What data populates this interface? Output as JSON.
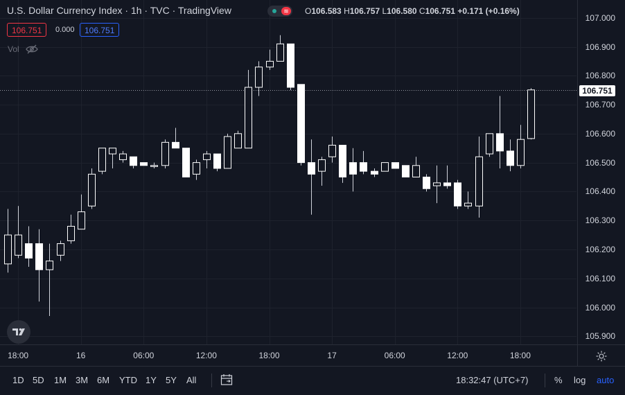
{
  "header": {
    "title": "U.S. Dollar Currency Index · 1h · TVC · TradingView",
    "ohlc": {
      "o_label": "O",
      "o_value": "106.583",
      "h_label": "H",
      "h_value": "106.757",
      "l_label": "L",
      "l_value": "106.580",
      "c_label": "C",
      "c_value": "106.751",
      "change": "+0.171 (+0.16%)"
    },
    "sell_price": "106.751",
    "spread": "0.000",
    "buy_price": "106.751",
    "volume_label": "Vol",
    "market_icon_glyph": "≋"
  },
  "chart_data": {
    "type": "candlestick",
    "title": "U.S. Dollar Currency Index · 1h · TVC · TradingView",
    "x_ticks": [
      {
        "index": 1,
        "label": "18:00"
      },
      {
        "index": 7,
        "label": "16"
      },
      {
        "index": 13,
        "label": "06:00"
      },
      {
        "index": 19,
        "label": "12:00"
      },
      {
        "index": 25,
        "label": "18:00"
      },
      {
        "index": 31,
        "label": "17"
      },
      {
        "index": 37,
        "label": "06:00"
      },
      {
        "index": 43,
        "label": "12:00"
      },
      {
        "index": 49,
        "label": "18:00"
      }
    ],
    "y_ticks": [
      "105.900",
      "106.000",
      "106.100",
      "106.200",
      "106.300",
      "106.400",
      "106.500",
      "106.600",
      "106.700",
      "106.800",
      "106.900",
      "107.000"
    ],
    "ylim": [
      105.87,
      107.02
    ],
    "last_price": "106.751",
    "colors": {
      "up": "#ffffff",
      "down": "#ffffff",
      "wick": "#d1d4dc",
      "background": "#131722",
      "grid": "#1e222d"
    },
    "candles": [
      {
        "o": 106.15,
        "h": 106.34,
        "l": 106.12,
        "c": 106.25
      },
      {
        "o": 106.18,
        "h": 106.35,
        "l": 106.17,
        "c": 106.25
      },
      {
        "o": 106.22,
        "h": 106.28,
        "l": 106.14,
        "c": 106.17
      },
      {
        "o": 106.22,
        "h": 106.27,
        "l": 106.02,
        "c": 106.13
      },
      {
        "o": 106.13,
        "h": 106.22,
        "l": 105.97,
        "c": 106.16
      },
      {
        "o": 106.18,
        "h": 106.23,
        "l": 106.16,
        "c": 106.22
      },
      {
        "o": 106.23,
        "h": 106.32,
        "l": 106.22,
        "c": 106.28
      },
      {
        "o": 106.27,
        "h": 106.39,
        "l": 106.27,
        "c": 106.33
      },
      {
        "o": 106.35,
        "h": 106.48,
        "l": 106.34,
        "c": 106.46
      },
      {
        "o": 106.47,
        "h": 106.55,
        "l": 106.46,
        "c": 106.55
      },
      {
        "o": 106.53,
        "h": 106.55,
        "l": 106.48,
        "c": 106.55
      },
      {
        "o": 106.51,
        "h": 106.54,
        "l": 106.5,
        "c": 106.53
      },
      {
        "o": 106.52,
        "h": 106.52,
        "l": 106.48,
        "c": 106.49
      },
      {
        "o": 106.5,
        "h": 106.5,
        "l": 106.49,
        "c": 106.49
      },
      {
        "o": 106.49,
        "h": 106.5,
        "l": 106.48,
        "c": 106.49
      },
      {
        "o": 106.49,
        "h": 106.58,
        "l": 106.48,
        "c": 106.57
      },
      {
        "o": 106.57,
        "h": 106.62,
        "l": 106.55,
        "c": 106.55
      },
      {
        "o": 106.55,
        "h": 106.55,
        "l": 106.45,
        "c": 106.45
      },
      {
        "o": 106.46,
        "h": 106.51,
        "l": 106.44,
        "c": 106.5
      },
      {
        "o": 106.51,
        "h": 106.54,
        "l": 106.48,
        "c": 106.53
      },
      {
        "o": 106.53,
        "h": 106.53,
        "l": 106.47,
        "c": 106.48
      },
      {
        "o": 106.48,
        "h": 106.6,
        "l": 106.48,
        "c": 106.59
      },
      {
        "o": 106.55,
        "h": 106.61,
        "l": 106.55,
        "c": 106.6
      },
      {
        "o": 106.55,
        "h": 106.82,
        "l": 106.55,
        "c": 106.76
      },
      {
        "o": 106.76,
        "h": 106.85,
        "l": 106.73,
        "c": 106.83
      },
      {
        "o": 106.83,
        "h": 106.89,
        "l": 106.82,
        "c": 106.85
      },
      {
        "o": 106.85,
        "h": 106.94,
        "l": 106.85,
        "c": 106.91
      },
      {
        "o": 106.91,
        "h": 106.91,
        "l": 106.75,
        "c": 106.76
      },
      {
        "o": 106.77,
        "h": 106.77,
        "l": 106.49,
        "c": 106.5
      },
      {
        "o": 106.5,
        "h": 106.58,
        "l": 106.32,
        "c": 106.46
      },
      {
        "o": 106.47,
        "h": 106.52,
        "l": 106.42,
        "c": 106.51
      },
      {
        "o": 106.52,
        "h": 106.59,
        "l": 106.5,
        "c": 106.56
      },
      {
        "o": 106.56,
        "h": 106.56,
        "l": 106.43,
        "c": 106.45
      },
      {
        "o": 106.5,
        "h": 106.55,
        "l": 106.4,
        "c": 106.46
      },
      {
        "o": 106.5,
        "h": 106.54,
        "l": 106.46,
        "c": 106.47
      },
      {
        "o": 106.47,
        "h": 106.48,
        "l": 106.45,
        "c": 106.46
      },
      {
        "o": 106.47,
        "h": 106.5,
        "l": 106.47,
        "c": 106.5
      },
      {
        "o": 106.5,
        "h": 106.5,
        "l": 106.48,
        "c": 106.48
      },
      {
        "o": 106.49,
        "h": 106.49,
        "l": 106.45,
        "c": 106.45
      },
      {
        "o": 106.45,
        "h": 106.52,
        "l": 106.45,
        "c": 106.49
      },
      {
        "o": 106.45,
        "h": 106.46,
        "l": 106.4,
        "c": 106.41
      },
      {
        "o": 106.42,
        "h": 106.49,
        "l": 106.36,
        "c": 106.43
      },
      {
        "o": 106.43,
        "h": 106.49,
        "l": 106.41,
        "c": 106.42
      },
      {
        "o": 106.43,
        "h": 106.44,
        "l": 106.34,
        "c": 106.35
      },
      {
        "o": 106.35,
        "h": 106.4,
        "l": 106.34,
        "c": 106.36
      },
      {
        "o": 106.35,
        "h": 106.59,
        "l": 106.31,
        "c": 106.52
      },
      {
        "o": 106.53,
        "h": 106.6,
        "l": 106.52,
        "c": 106.6
      },
      {
        "o": 106.6,
        "h": 106.73,
        "l": 106.48,
        "c": 106.54
      },
      {
        "o": 106.54,
        "h": 106.58,
        "l": 106.47,
        "c": 106.49
      },
      {
        "o": 106.49,
        "h": 106.63,
        "l": 106.48,
        "c": 106.58
      },
      {
        "o": 106.583,
        "h": 106.757,
        "l": 106.58,
        "c": 106.751
      }
    ]
  },
  "toolbar": {
    "timeframes": [
      "1D",
      "5D",
      "1M",
      "3M",
      "6M",
      "YTD",
      "1Y",
      "5Y",
      "All"
    ],
    "clock": "18:32:47 (UTC+7)",
    "percent_label": "%",
    "log_label": "log",
    "auto_label": "auto"
  }
}
